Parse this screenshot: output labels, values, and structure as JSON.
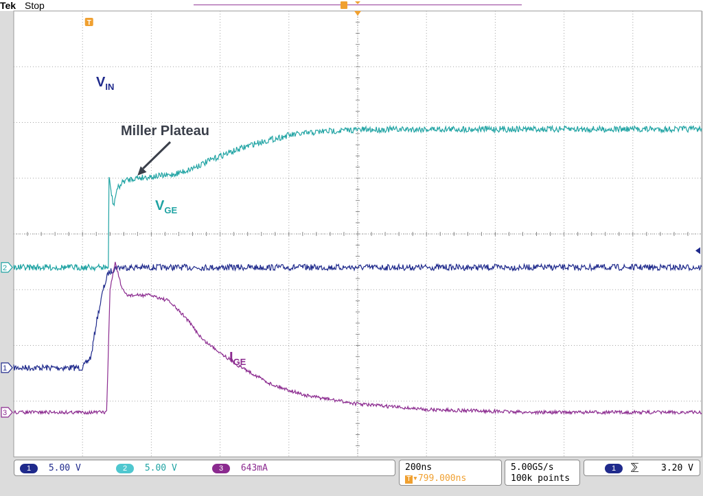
{
  "header": {
    "brand": "Tek",
    "status": "Stop"
  },
  "colors": {
    "ch1": "#1f2a8c",
    "ch2": "#1fa3a3",
    "ch3": "#8b2a8f",
    "trigger": "#f0a030",
    "grid": "#8c8c8c",
    "annotation": "#3a3f4a"
  },
  "markers": {
    "ch1": "1",
    "ch2": "2",
    "ch3": "3",
    "trigger": "T"
  },
  "chart_data": {
    "type": "line",
    "title": "",
    "xlabel": "",
    "ylabel": "",
    "x_unit": "ns",
    "xlim": [
      0,
      2000
    ],
    "ylim_divisions": [
      -4,
      4
    ],
    "grid": "on",
    "series": [
      {
        "name": "VIN",
        "label_main": "V",
        "label_sub": "IN",
        "channel": "1",
        "x": [
          0,
          200,
          225,
          240,
          260,
          275,
          300,
          500,
          1000,
          1500,
          2000
        ],
        "y": [
          -2.4,
          -2.4,
          -2.2,
          -1.6,
          -1.0,
          -0.7,
          -0.6,
          -0.6,
          -0.6,
          -0.6,
          -0.6
        ]
      },
      {
        "name": "VGE",
        "label_main": "V",
        "label_sub": "GE",
        "channel": "2",
        "x": [
          0,
          275,
          277,
          290,
          300,
          320,
          350,
          400,
          450,
          500,
          550,
          600,
          700,
          800,
          900,
          1000,
          1200,
          1500,
          2000
        ],
        "y": [
          -0.6,
          -0.6,
          1.0,
          0.5,
          0.8,
          0.95,
          1.0,
          1.03,
          1.05,
          1.13,
          1.26,
          1.4,
          1.62,
          1.77,
          1.84,
          1.87,
          1.88,
          1.88,
          1.88
        ]
      },
      {
        "name": "IGE",
        "label_main": "I",
        "label_sub": "GE",
        "channel": "3",
        "x": [
          0,
          270,
          280,
          295,
          315,
          330,
          360,
          400,
          450,
          500,
          550,
          650,
          750,
          850,
          1000,
          1200,
          1500,
          2000
        ],
        "y": [
          -3.2,
          -3.2,
          -1.0,
          -0.5,
          -1.0,
          -1.1,
          -1.1,
          -1.1,
          -1.2,
          -1.5,
          -1.9,
          -2.35,
          -2.7,
          -2.9,
          -3.05,
          -3.15,
          -3.2,
          -3.2
        ]
      }
    ],
    "annotations": [
      {
        "text": "Miller Plateau",
        "target_x": 360,
        "target_y": 1.05
      }
    ]
  },
  "readouts": {
    "ch1": {
      "badge": "1",
      "value": "5.00 V"
    },
    "ch2": {
      "badge": "2",
      "value": "5.00 V"
    },
    "ch3": {
      "badge": "3",
      "value": "643mA"
    },
    "timebase": "200ns",
    "trigger_position": "▾799.000ns",
    "sample_rate": "5.00GS/s",
    "record_length": "100k points",
    "trigger_source": "1",
    "trigger_slope": "⅀",
    "trigger_level": "3.20 V"
  }
}
